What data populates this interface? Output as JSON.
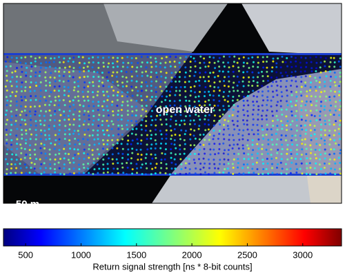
{
  "image": {
    "annotation": "open water",
    "scale_bar": "50 m"
  },
  "colorbar": {
    "label": "Return signal strength [ns * 8-bit counts]",
    "lim": [
      300,
      3350
    ],
    "ticks": [
      500,
      1000,
      1500,
      2000,
      2500,
      3000
    ],
    "colormap": "jet"
  }
}
